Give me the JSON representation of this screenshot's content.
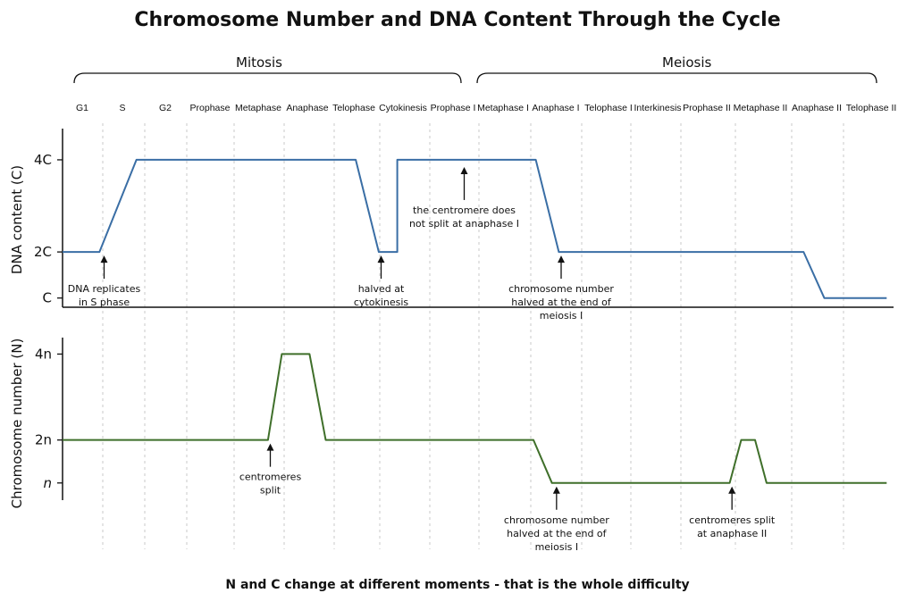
{
  "title": "Chromosome Number and DNA Content Through the Cycle",
  "caption": "N and C change at different moments - that is the whole difficulty",
  "groups": [
    {
      "label": "Mitosis",
      "from": "G1",
      "to": "Prophase I"
    },
    {
      "label": "Meiosis",
      "from": "Metaphase I",
      "to": "Telophase II"
    }
  ],
  "chart_data": [
    {
      "type": "line",
      "ylabel": "DNA content (C)",
      "yticks": [
        "4C",
        "2C",
        "C"
      ],
      "ytick_values": [
        4,
        2,
        1
      ],
      "ylim": [
        0.8,
        4.6
      ],
      "xlim": [
        0,
        18
      ],
      "color": "#3a6ea5",
      "x_categories": [
        "G1",
        "S",
        "G2",
        "Prophase",
        "Metaphase",
        "Anaphase",
        "Telophase",
        "Cytokinesis",
        "Prophase I",
        "Metaphase I",
        "Anaphase I",
        "Telophase I",
        "Interkinesis",
        "Prophase II",
        "Metaphase II",
        "Anaphase II",
        "Telophase II"
      ],
      "x": [
        0,
        0.8,
        1.6,
        6.35,
        6.85,
        7.25,
        7.25,
        10.25,
        10.75,
        16.05,
        16.5,
        17.85
      ],
      "values": [
        2,
        2,
        4,
        4,
        2,
        2,
        4,
        4,
        2,
        2,
        1,
        1
      ],
      "annotations": [
        {
          "text": [
            "DNA replicates",
            "in S phase"
          ],
          "x": 0.9,
          "y": 2,
          "dir": "up"
        },
        {
          "text": [
            "halved at",
            "cytokinesis"
          ],
          "x": 6.9,
          "y": 2,
          "dir": "up"
        },
        {
          "text": [
            "the centromere does",
            "not split at anaphase I"
          ],
          "x": 8.7,
          "y": 4,
          "dir": "down"
        },
        {
          "text": [
            "chromosome number",
            "halved at the end of",
            "meiosis I"
          ],
          "x": 10.8,
          "y": 2,
          "dir": "up"
        }
      ]
    },
    {
      "type": "line",
      "ylabel": "Chromosome number (N)",
      "yticks": [
        "4n",
        "2n",
        "n"
      ],
      "ytick_values": [
        4,
        2,
        1
      ],
      "ylim": [
        0.6,
        4.3
      ],
      "xlim": [
        0,
        18
      ],
      "color": "#3f6f2a",
      "x": [
        0,
        4.45,
        4.75,
        5.35,
        5.7,
        10.2,
        10.6,
        14.45,
        14.7,
        15.0,
        15.25,
        17.85
      ],
      "values": [
        2,
        2,
        4,
        4,
        2,
        2,
        1,
        1,
        2,
        2,
        1,
        1
      ],
      "annotations": [
        {
          "text": [
            "centromeres",
            "split"
          ],
          "x": 4.5,
          "y": 2,
          "dir": "up"
        },
        {
          "text": [
            "chromosome number",
            "halved at the end of",
            "meiosis I"
          ],
          "x": 10.7,
          "y": 1,
          "dir": "up"
        },
        {
          "text": [
            "centromeres split",
            "at anaphase II"
          ],
          "x": 14.5,
          "y": 1,
          "dir": "up"
        }
      ]
    }
  ]
}
